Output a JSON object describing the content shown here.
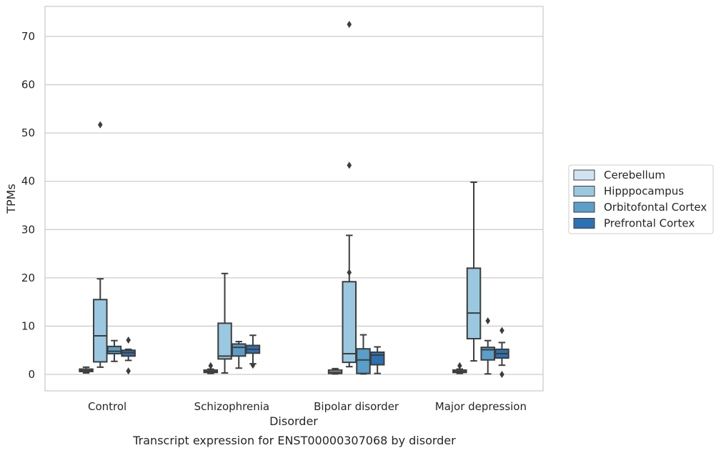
{
  "chart_data": {
    "type": "box",
    "xlabel": "Disorder",
    "ylabel": "TPMs",
    "caption": "Transcript expression for ENST00000307068 by disorder",
    "ylim": [
      -3.5,
      76
    ],
    "yticks": [
      0,
      10,
      20,
      30,
      40,
      50,
      60,
      70
    ],
    "grid": "horizontal",
    "legend_position": "right",
    "categories": [
      "Control",
      "Schizophrenia",
      "Bipolar disorder",
      "Major depression"
    ],
    "series": [
      {
        "name": "Cerebellum",
        "color": "#d1e3f3",
        "boxes": [
          {
            "whislo": 0.3,
            "q1": 0.6,
            "med": 0.8,
            "q3": 1.1,
            "whishi": 1.5,
            "fliers": []
          },
          {
            "whislo": 0.2,
            "q1": 0.4,
            "med": 0.6,
            "q3": 0.9,
            "whishi": 1.1,
            "fliers": [
              1.8
            ]
          },
          {
            "whislo": 0.1,
            "q1": 0.2,
            "med": 0.5,
            "q3": 0.9,
            "whishi": 1.2,
            "fliers": []
          },
          {
            "whislo": 0.2,
            "q1": 0.4,
            "med": 0.6,
            "q3": 0.9,
            "whishi": 1.1,
            "fliers": [
              1.8
            ]
          }
        ]
      },
      {
        "name": "Hipppocampus",
        "color": "#9ac8e0",
        "boxes": [
          {
            "whislo": 1.5,
            "q1": 2.6,
            "med": 8.0,
            "q3": 15.5,
            "whishi": 19.8,
            "fliers": [
              51.7
            ]
          },
          {
            "whislo": 0.3,
            "q1": 3.2,
            "med": 3.8,
            "q3": 10.6,
            "whishi": 20.9,
            "fliers": []
          },
          {
            "whislo": 1.6,
            "q1": 2.5,
            "med": 4.3,
            "q3": 19.2,
            "whishi": 28.8,
            "fliers": [
              21.1,
              43.3,
              72.5
            ]
          },
          {
            "whislo": 2.8,
            "q1": 7.4,
            "med": 12.7,
            "q3": 22.0,
            "whishi": 39.8,
            "fliers": []
          }
        ]
      },
      {
        "name": "Orbitofontal Cortex",
        "color": "#5a9fca",
        "boxes": [
          {
            "whislo": 2.7,
            "q1": 4.3,
            "med": 4.8,
            "q3": 5.8,
            "whishi": 7.0,
            "fliers": []
          },
          {
            "whislo": 1.3,
            "q1": 3.8,
            "med": 5.6,
            "q3": 6.3,
            "whishi": 6.8,
            "fliers": []
          },
          {
            "whislo": 0.1,
            "q1": 0.2,
            "med": 3.0,
            "q3": 5.3,
            "whishi": 8.2,
            "fliers": []
          },
          {
            "whislo": 0.1,
            "q1": 3.0,
            "med": 5.1,
            "q3": 5.6,
            "whishi": 7.0,
            "fliers": [
              11.1
            ]
          }
        ]
      },
      {
        "name": "Prefrontal Cortex",
        "color": "#2c71b1",
        "boxes": [
          {
            "whislo": 2.9,
            "q1": 3.8,
            "med": 4.5,
            "q3": 5.0,
            "whishi": 5.2,
            "fliers": [
              0.7,
              7.1
            ]
          },
          {
            "whislo": 2.2,
            "q1": 4.4,
            "med": 5.2,
            "q3": 6.0,
            "whishi": 8.1,
            "fliers": [
              1.9
            ]
          },
          {
            "whislo": 0.2,
            "q1": 2.0,
            "med": 4.0,
            "q3": 4.6,
            "whishi": 5.7,
            "fliers": []
          },
          {
            "whislo": 1.9,
            "q1": 3.4,
            "med": 4.3,
            "q3": 5.2,
            "whishi": 6.6,
            "fliers": [
              0.0,
              9.1
            ]
          }
        ]
      }
    ]
  }
}
